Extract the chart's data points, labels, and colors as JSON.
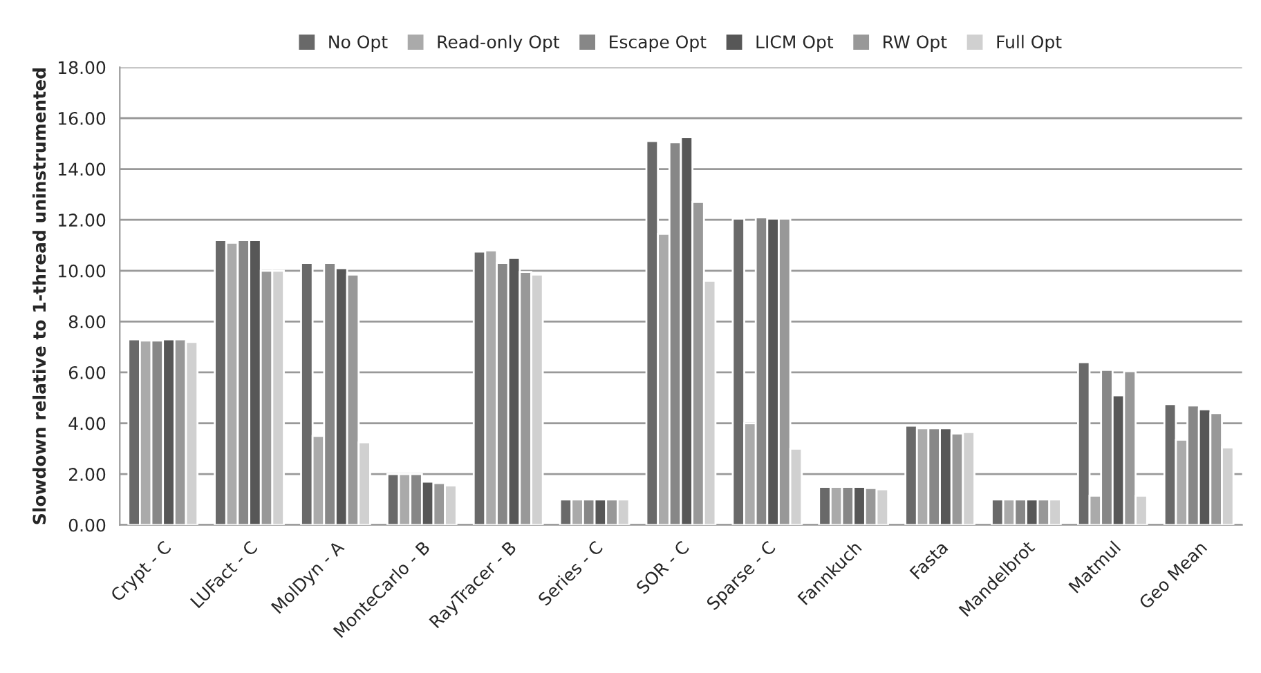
{
  "chart_data": {
    "type": "bar",
    "ylabel": "Slowdown relative to 1-thread uninstrumented",
    "categories": [
      "Crypt - C",
      "LUFact - C",
      "MolDyn - A",
      "MonteCarlo - B",
      "RayTracer - B",
      "Series - C",
      "SOR - C",
      "Sparse - C",
      "Fannkuch",
      "Fasta",
      "Mandelbrot",
      "Matmul",
      "Geo Mean"
    ],
    "series": [
      {
        "name": "No Opt",
        "color": "#696969",
        "values": [
          7.3,
          11.2,
          10.3,
          2.0,
          10.75,
          1.0,
          15.1,
          12.05,
          1.5,
          3.9,
          1.0,
          6.4,
          4.75
        ]
      },
      {
        "name": "Read-only Opt",
        "color": "#aaaaaa",
        "values": [
          7.25,
          11.1,
          3.5,
          2.0,
          10.8,
          1.0,
          11.45,
          4.0,
          1.5,
          3.8,
          1.0,
          1.15,
          3.35
        ]
      },
      {
        "name": "Escape Opt",
        "color": "#878787",
        "values": [
          7.25,
          11.2,
          10.3,
          2.0,
          10.3,
          1.0,
          15.05,
          12.1,
          1.5,
          3.8,
          1.0,
          6.1,
          4.7
        ]
      },
      {
        "name": "LICM Opt",
        "color": "#575757",
        "values": [
          7.3,
          11.2,
          10.1,
          1.7,
          10.5,
          1.0,
          15.25,
          12.05,
          1.5,
          3.8,
          1.0,
          5.1,
          4.55
        ]
      },
      {
        "name": "RW Opt",
        "color": "#989898",
        "values": [
          7.3,
          10.0,
          9.85,
          1.65,
          9.95,
          1.0,
          12.7,
          12.05,
          1.45,
          3.6,
          1.0,
          6.05,
          4.4
        ]
      },
      {
        "name": "Full Opt",
        "color": "#d0d0d0",
        "values": [
          7.2,
          10.0,
          3.25,
          1.55,
          9.85,
          1.0,
          9.6,
          3.0,
          1.4,
          3.65,
          1.0,
          1.15,
          3.05
        ]
      }
    ],
    "ylim": [
      0,
      18
    ],
    "yticks": [
      {
        "value": 0,
        "label": "0.00"
      },
      {
        "value": 2,
        "label": "2.00"
      },
      {
        "value": 4,
        "label": "4.00"
      },
      {
        "value": 6,
        "label": "6.00"
      },
      {
        "value": 8,
        "label": "8.00"
      },
      {
        "value": 10,
        "label": "10.00"
      },
      {
        "value": 12,
        "label": "12.00"
      },
      {
        "value": 14,
        "label": "14.00"
      },
      {
        "value": 16,
        "label": "16.00"
      },
      {
        "value": 18,
        "label": "18.00"
      }
    ],
    "grid": "y",
    "legend": "top"
  }
}
